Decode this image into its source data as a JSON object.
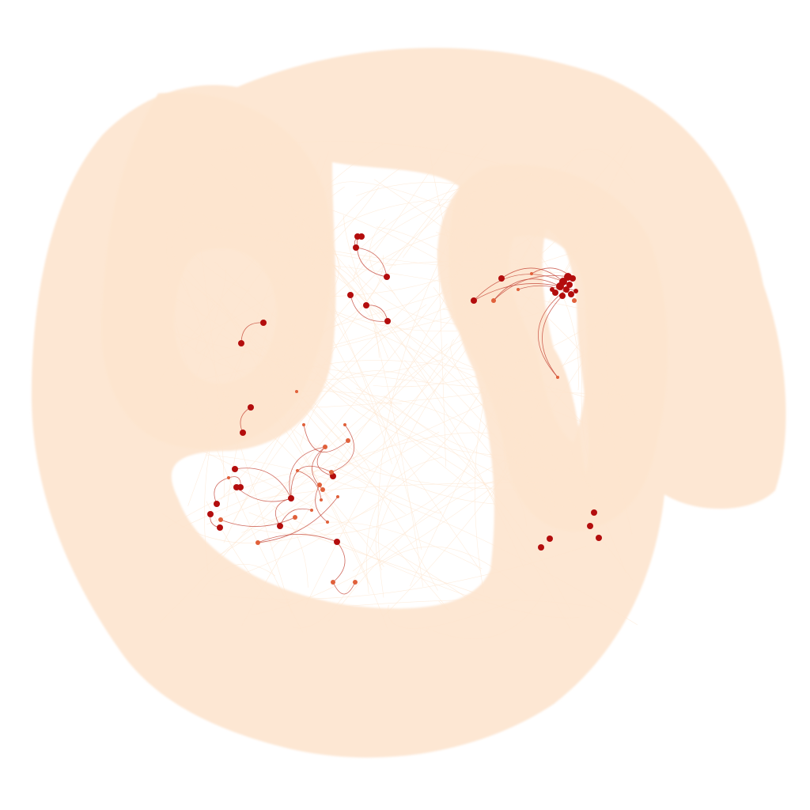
{
  "colors": {
    "background": "#ffffff",
    "edge_bulk": "#fde5cf",
    "edge_highlight": "#c0392b",
    "node_bulk": "#f9cfa8",
    "node_highlight": "#b30d0d",
    "node_secondary": "#e0603a"
  },
  "network": {
    "layout": "force-directed",
    "highlighted_clusters": [
      "upper-right-dense-cluster",
      "upper-center-cluster",
      "left-pair-cluster",
      "lower-center-cluster",
      "lower-right-cluster"
    ]
  }
}
